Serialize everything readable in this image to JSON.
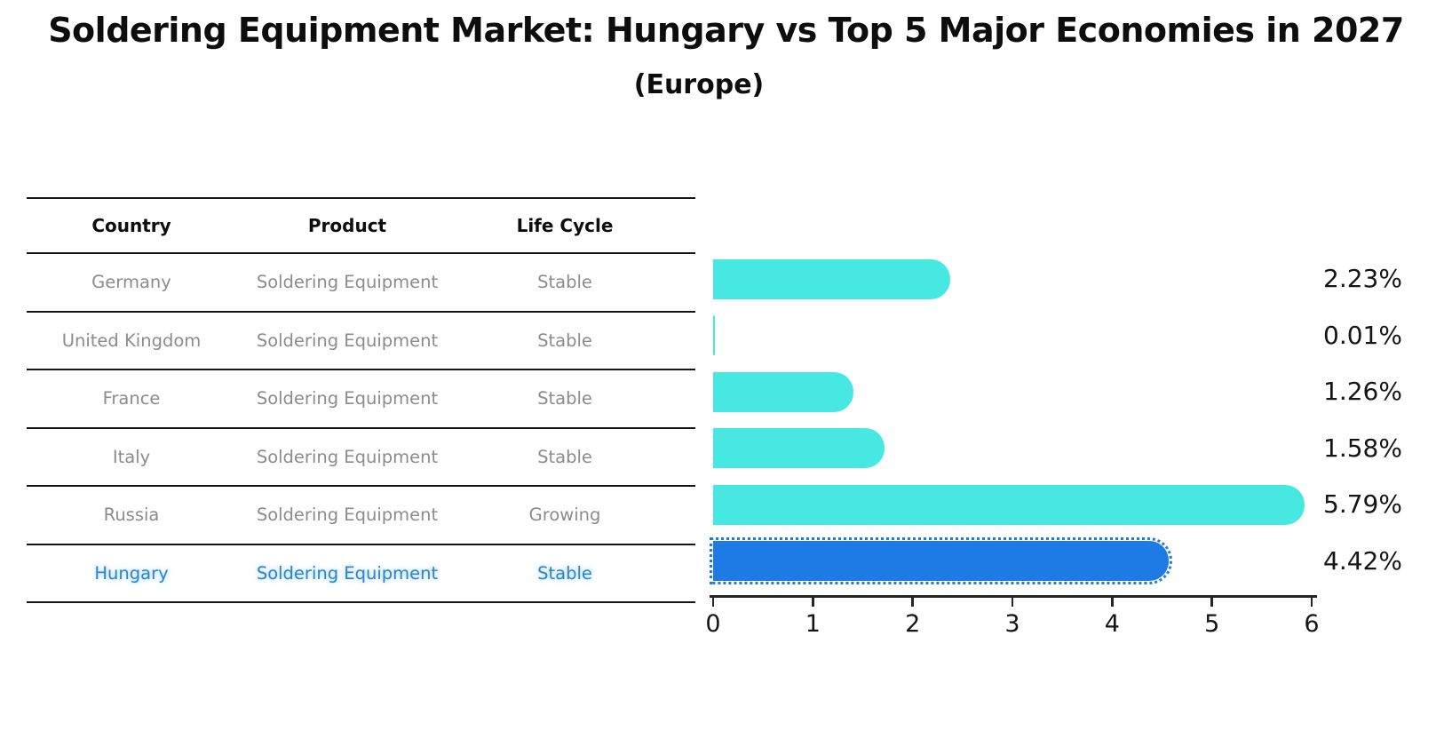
{
  "title": "Soldering Equipment Market: Hungary vs Top 5 Major Economies in 2027",
  "subtitle": "(Europe)",
  "table": {
    "headers": [
      "Country",
      "Product",
      "Life Cycle"
    ],
    "rows": [
      {
        "country": "Germany",
        "product": "Soldering Equipment",
        "life_cycle": "Stable",
        "highlight": false
      },
      {
        "country": "United Kingdom",
        "product": "Soldering Equipment",
        "life_cycle": "Stable",
        "highlight": false
      },
      {
        "country": "France",
        "product": "Soldering Equipment",
        "life_cycle": "Stable",
        "highlight": false
      },
      {
        "country": "Italy",
        "product": "Soldering Equipment",
        "life_cycle": "Stable",
        "highlight": false
      },
      {
        "country": "Russia",
        "product": "Soldering Equipment",
        "life_cycle": "Growing",
        "highlight": false
      },
      {
        "country": "Hungary",
        "product": "Soldering Equipment",
        "life_cycle": "Stable",
        "highlight": true
      }
    ]
  },
  "chart_data": {
    "type": "bar",
    "orientation": "horizontal",
    "categories": [
      "Germany",
      "United Kingdom",
      "France",
      "Italy",
      "Russia",
      "Hungary"
    ],
    "values": [
      2.23,
      0.01,
      1.26,
      1.58,
      5.79,
      4.42
    ],
    "value_labels": [
      "2.23%",
      "0.01%",
      "1.26%",
      "1.58%",
      "5.79%",
      "4.42%"
    ],
    "xticks": [
      "0",
      "1",
      "2",
      "3",
      "4",
      "5",
      "6"
    ],
    "xlim": [
      0,
      6
    ],
    "grid": false,
    "legend": "none",
    "bar_color": "#48E8E2",
    "highlight_bar_color": "#1E7BE5",
    "highlight_index": 5,
    "title": "Soldering Equipment Market: Hungary vs Top 5 Major Economies in 2027",
    "subtitle": "(Europe)",
    "xlabel": "",
    "ylabel": ""
  },
  "colors": {
    "text": "#0d0d0d",
    "muted_text": "#8c8c8c",
    "highlight_text": "#2e86c8",
    "line": "#141414",
    "axis": "#262626"
  }
}
